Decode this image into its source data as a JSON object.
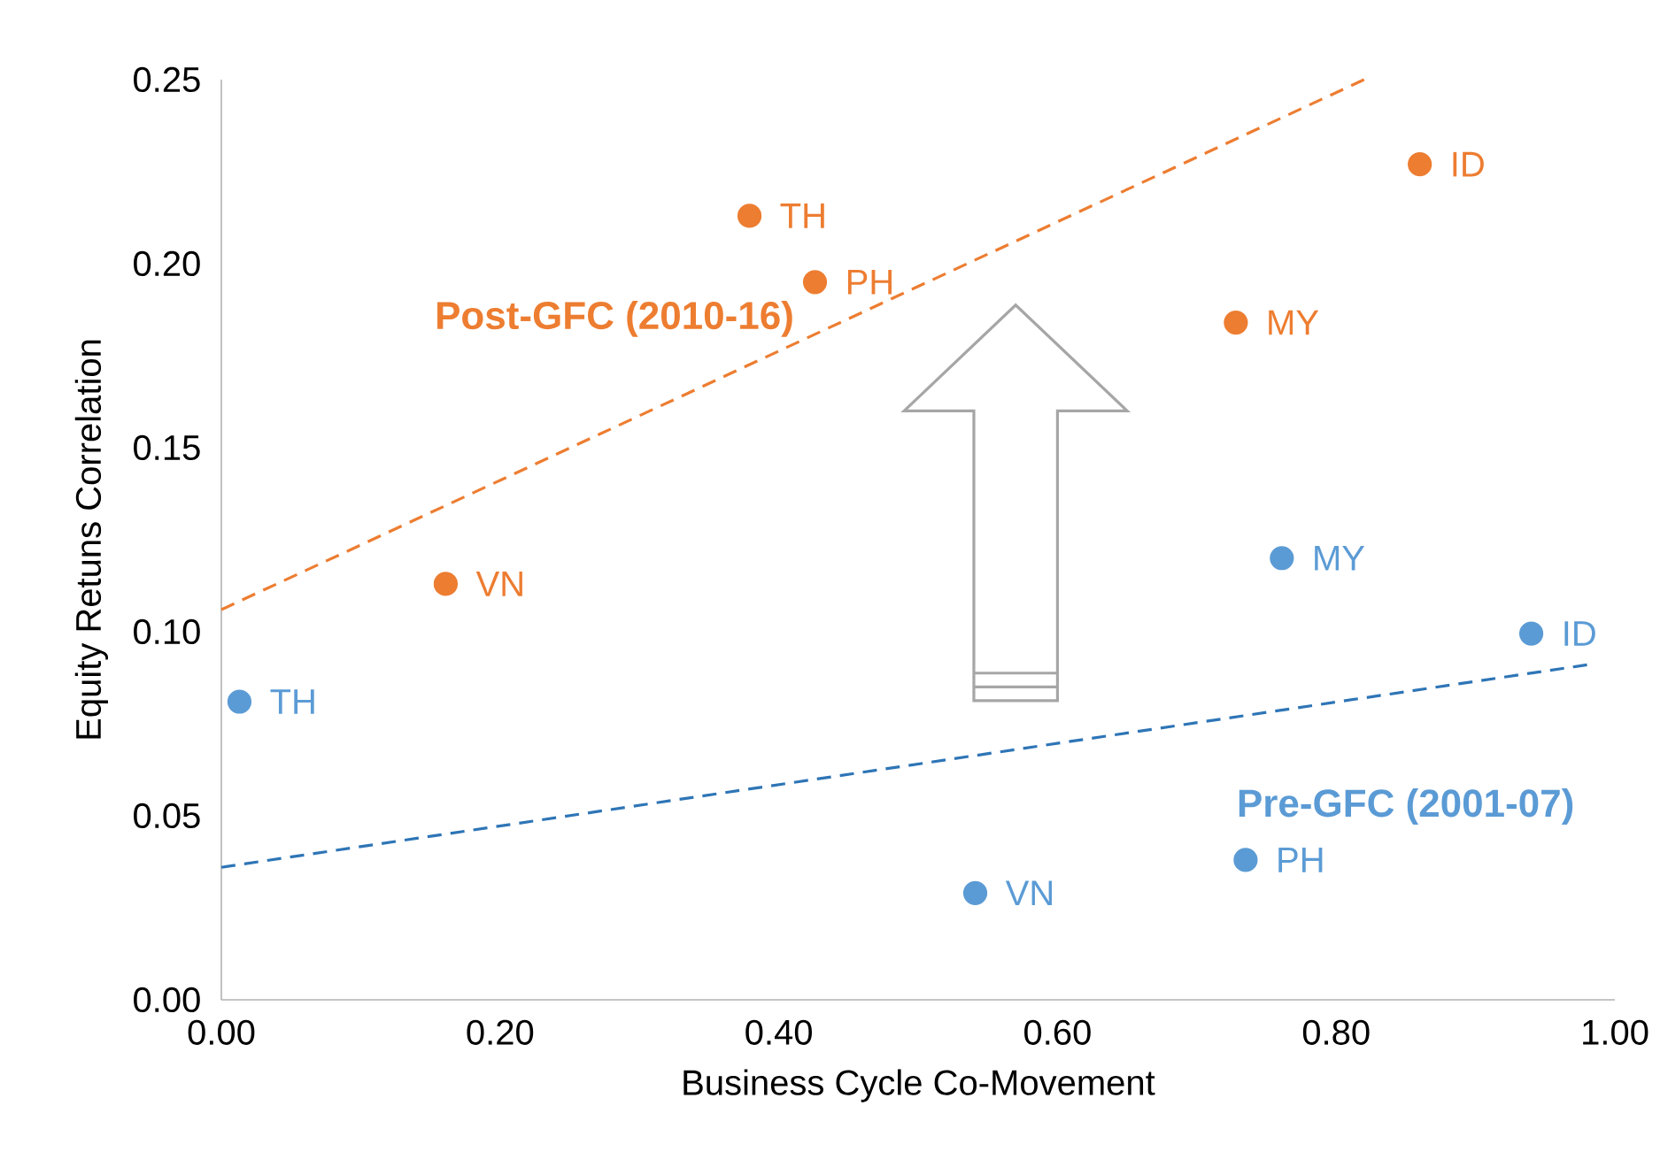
{
  "chart_data": {
    "type": "scatter",
    "xlabel": "Business Cycle Co-Movement",
    "ylabel": "Equity Retuns Correlation",
    "xlim": [
      0,
      1
    ],
    "ylim": [
      0,
      0.25
    ],
    "xticks": [
      {
        "value": 0,
        "label": "0.00"
      },
      {
        "value": 0.2,
        "label": "0.20"
      },
      {
        "value": 0.4,
        "label": "0.40"
      },
      {
        "value": 0.6,
        "label": "0.60"
      },
      {
        "value": 0.8,
        "label": "0.80"
      },
      {
        "value": 1,
        "label": "1.00"
      }
    ],
    "yticks": [
      {
        "value": 0,
        "label": "0.00"
      },
      {
        "value": 0.05,
        "label": "0.05"
      },
      {
        "value": 0.1,
        "label": "0.10"
      },
      {
        "value": 0.15,
        "label": "0.15"
      },
      {
        "value": 0.2,
        "label": "0.20"
      },
      {
        "value": 0.25,
        "label": "0.25"
      }
    ],
    "grid": false,
    "legend": false,
    "marker": "circle",
    "series": [
      {
        "name": "Post-GFC (2010-16)",
        "color": "#ed7d31",
        "x": [
          0.379,
          0.426,
          0.86,
          0.728,
          0.161
        ],
        "values": [
          0.213,
          0.195,
          0.227,
          0.184,
          0.113
        ]
      },
      {
        "name": "Pre-GFC (2001-07)",
        "color": "#5b9bd5",
        "x": [
          0.013,
          0.761,
          0.94,
          0.735,
          0.541
        ],
        "values": [
          0.081,
          0.12,
          0.0995,
          0.038,
          0.029
        ]
      },
      {
        "type": "line",
        "line_style": "dashed",
        "marker": "none",
        "color": "#ed7d31",
        "x": [
          0,
          0.82
        ],
        "values": [
          0.106,
          0.25
        ]
      },
      {
        "type": "line",
        "line_style": "dashed",
        "marker": "none",
        "color": "#2e75b6",
        "x": [
          0,
          0.98
        ],
        "values": [
          0.036,
          0.091
        ]
      }
    ],
    "annotations": [
      {
        "text": "TH",
        "x": 0.379,
        "y": 0.213
      },
      {
        "text": "PH",
        "x": 0.426,
        "y": 0.195
      },
      {
        "text": "ID",
        "x": 0.86,
        "y": 0.227
      },
      {
        "text": "MY",
        "x": 0.728,
        "y": 0.184
      },
      {
        "text": "VN",
        "x": 0.161,
        "y": 0.113
      },
      {
        "text": "TH",
        "x": 0.013,
        "y": 0.081
      },
      {
        "text": "MY",
        "x": 0.761,
        "y": 0.12
      },
      {
        "text": "ID",
        "x": 0.94,
        "y": 0.0995
      },
      {
        "text": "PH",
        "x": 0.735,
        "y": 0.038
      },
      {
        "text": "VN",
        "x": 0.541,
        "y": 0.029
      }
    ]
  }
}
